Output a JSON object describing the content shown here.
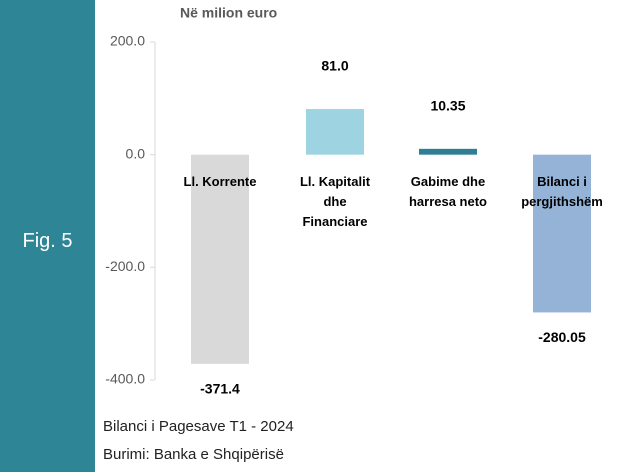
{
  "figure_label": "Fig. 5",
  "chart_data": {
    "type": "bar",
    "unit_label": "Në milion euro",
    "categories": [
      "Ll. Korrente",
      "Ll. Kapitalit dhe Financiare",
      "Gabime dhe harresa neto",
      "Bilanci i pergjithshëm"
    ],
    "values": [
      -371.4,
      81,
      10.35,
      -280.05
    ],
    "value_labels": [
      "-371.4",
      "81.0",
      "10.35",
      "-280.05"
    ],
    "colors": [
      "#d9d9d9",
      "#9ed4e1",
      "#2e7f93",
      "#95b3d7"
    ],
    "ylim": [
      -400,
      200
    ],
    "yticks": [
      {
        "value": -400,
        "label": "-400.0"
      },
      {
        "value": -200,
        "label": "-200.0"
      },
      {
        "value": 0,
        "label": "0.0"
      },
      {
        "value": 200,
        "label": "200.0"
      }
    ]
  },
  "footer": {
    "title": "Bilanci i Pagesave T1 - 2024",
    "source": "Burimi: Banka e Shqipërisë"
  }
}
